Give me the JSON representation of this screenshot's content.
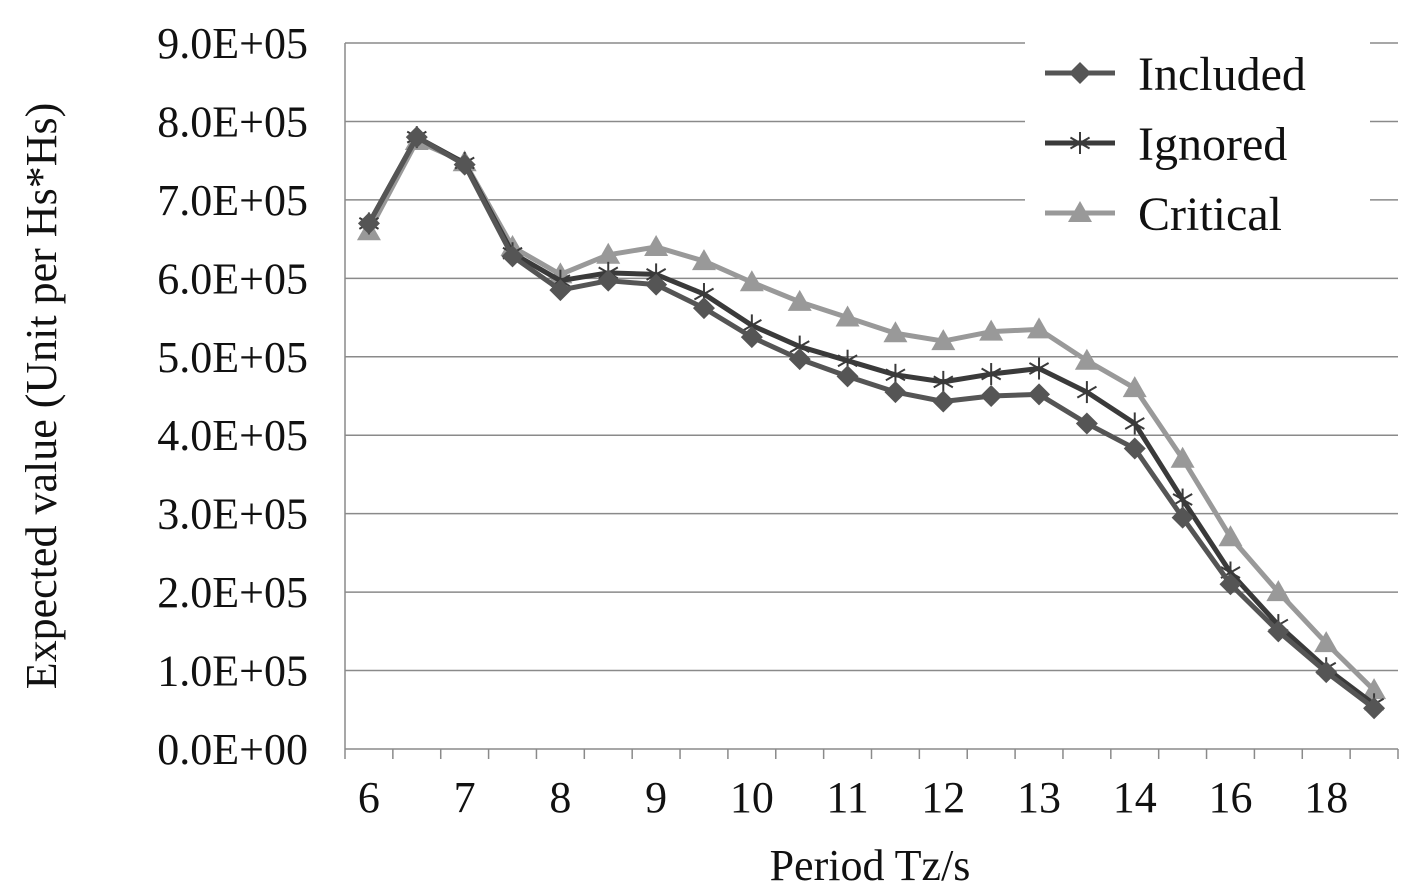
{
  "chart_data": {
    "type": "line",
    "title": "",
    "xlabel": "Period Tz/s",
    "ylabel": "Expected value (Unit per Hs*Hs)",
    "ylim": [
      0,
      900000
    ],
    "y_ticks": [
      "0.0E+00",
      "1.0E+05",
      "2.0E+05",
      "3.0E+05",
      "4.0E+05",
      "5.0E+05",
      "6.0E+05",
      "7.0E+05",
      "8.0E+05",
      "9.0E+05"
    ],
    "x_tick_labels": [
      "6",
      "7",
      "8",
      "9",
      "10",
      "11",
      "12",
      "13",
      "14",
      "16",
      "18"
    ],
    "x": [
      6,
      6.5,
      7,
      7.5,
      8,
      8.5,
      9,
      9.5,
      10,
      10.5,
      11,
      11.5,
      12,
      12.5,
      13,
      13.5,
      14,
      15,
      16,
      17,
      18,
      19
    ],
    "grid": true,
    "legend_position": "top-right",
    "series": [
      {
        "name": "Included",
        "marker": "diamond",
        "color": "#555555",
        "values": [
          670000,
          780000,
          745000,
          628000,
          585000,
          597000,
          592000,
          562000,
          525000,
          497000,
          475000,
          455000,
          443000,
          450000,
          452000,
          415000,
          383000,
          295000,
          210000,
          150000,
          98000,
          52000
        ]
      },
      {
        "name": "Ignored",
        "marker": "asterisk",
        "color": "#3a3a3a",
        "values": [
          670000,
          780000,
          747000,
          632000,
          597000,
          607000,
          605000,
          580000,
          540000,
          513000,
          495000,
          477000,
          468000,
          478000,
          485000,
          455000,
          415000,
          318000,
          225000,
          158000,
          103000,
          57000
        ]
      },
      {
        "name": "Critical",
        "marker": "triangle",
        "color": "#999999",
        "values": [
          660000,
          775000,
          748000,
          640000,
          605000,
          630000,
          640000,
          622000,
          595000,
          570000,
          550000,
          530000,
          520000,
          532000,
          535000,
          495000,
          460000,
          370000,
          270000,
          200000,
          135000,
          75000
        ]
      }
    ]
  }
}
